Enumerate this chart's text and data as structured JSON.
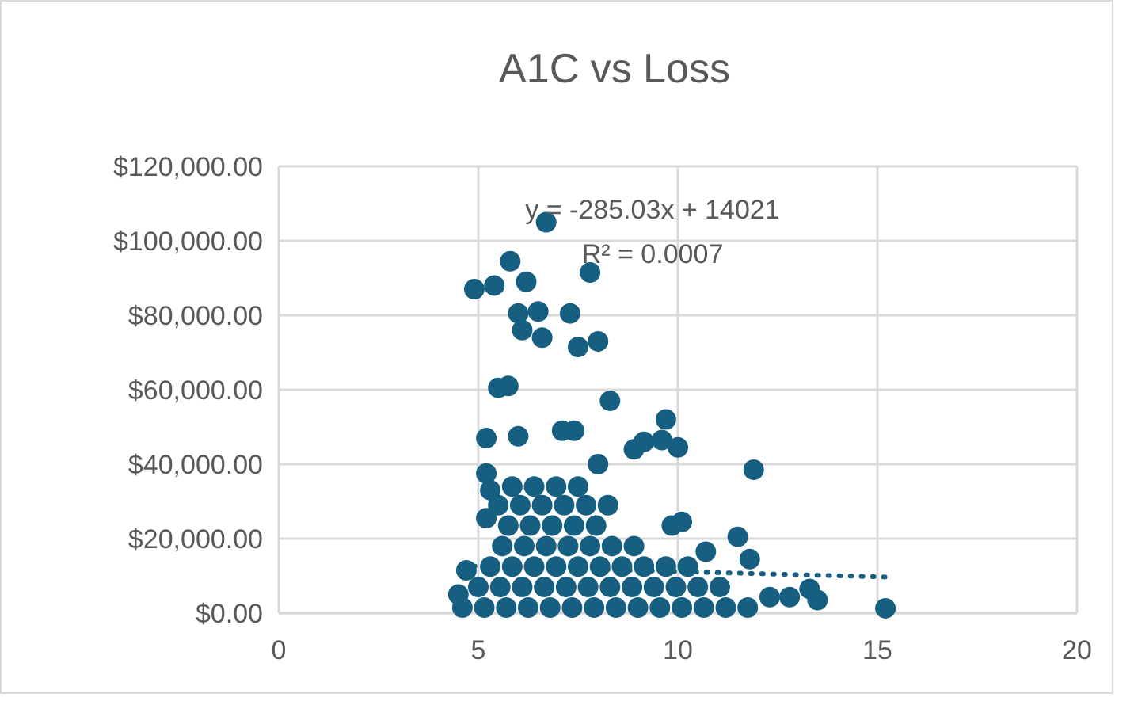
{
  "chart_data": {
    "type": "scatter",
    "title": "A1C vs Loss",
    "xlim": [
      0,
      20
    ],
    "xticks": [
      0,
      5,
      10,
      15,
      20
    ],
    "ylim": [
      0,
      120000
    ],
    "yticks": [
      {
        "value": 0,
        "label": "$0.00"
      },
      {
        "value": 20000,
        "label": "$20,000.00"
      },
      {
        "value": 40000,
        "label": "$40,000.00"
      },
      {
        "value": 60000,
        "label": "$60,000.00"
      },
      {
        "value": 80000,
        "label": "$80,000.00"
      },
      {
        "value": 100000,
        "label": "$100,000.00"
      },
      {
        "value": 120000,
        "label": "$120,000.00"
      }
    ],
    "grid": true,
    "marker": "circle",
    "annotations": [
      "y = -285.03x + 14021",
      "R² = 0.0007"
    ],
    "series": [
      {
        "color": "#175f81",
        "x": [
          6.7,
          4.9,
          5.4,
          5.8,
          6.2,
          6.0,
          6.5,
          6.6,
          7.3,
          7.8,
          6.1,
          7.5,
          8.0,
          5.5,
          5.75,
          8.3,
          5.2,
          6.0,
          7.1,
          7.4,
          9.7,
          9.15,
          9.6,
          10.0,
          11.9,
          10.1,
          9.85,
          11.5,
          10.7,
          11.8,
          12.3,
          12.8,
          13.3,
          13.5,
          15.2,
          5.2,
          8.0,
          8.9,
          5.3,
          5.2,
          4.7,
          4.5
        ],
        "values": [
          105000,
          87000,
          88000,
          94500,
          89000,
          80500,
          81000,
          74000,
          80500,
          91500,
          76000,
          71500,
          73000,
          60500,
          61000,
          57000,
          47000,
          47500,
          49000,
          49000,
          52000,
          46000,
          46500,
          44500,
          38500,
          24500,
          23500,
          20500,
          16500,
          14500,
          4300,
          4300,
          6500,
          3500,
          1300,
          37500,
          40000,
          44000,
          33000,
          25500,
          11500,
          5000
        ]
      },
      {
        "color": "#175f81",
        "x": [
          4.6,
          5.15,
          5.7,
          6.25,
          6.8,
          7.35,
          7.9,
          8.45,
          9.0,
          9.55,
          10.1,
          10.65,
          11.2,
          11.75
        ],
        "values": [
          1500,
          1500,
          1500,
          1500,
          1500,
          1500,
          1500,
          1500,
          1500,
          1500,
          1500,
          1500,
          1500,
          1500
        ]
      },
      {
        "color": "#175f81",
        "x": [
          5.0,
          5.55,
          6.1,
          6.65,
          7.2,
          7.75,
          8.3,
          8.85,
          9.4,
          9.95,
          10.5,
          11.05
        ],
        "values": [
          7000,
          7000,
          7000,
          7000,
          7000,
          7000,
          7000,
          7000,
          7000,
          7000,
          7000,
          7000
        ]
      },
      {
        "color": "#175f81",
        "x": [
          5.3,
          5.85,
          6.4,
          6.95,
          7.5,
          8.05,
          8.6,
          9.15,
          9.7,
          10.25
        ],
        "values": [
          12500,
          12500,
          12500,
          12500,
          12500,
          12500,
          12500,
          12500,
          12500,
          12500
        ]
      },
      {
        "color": "#175f81",
        "x": [
          5.6,
          6.15,
          6.7,
          7.25,
          7.8,
          8.35,
          8.9
        ],
        "values": [
          18000,
          18000,
          18000,
          18000,
          18000,
          18000,
          18000
        ]
      },
      {
        "color": "#175f81",
        "x": [
          5.75,
          6.3,
          6.85,
          7.4,
          7.95
        ],
        "values": [
          23500,
          23500,
          23500,
          23500,
          23500
        ]
      },
      {
        "color": "#175f81",
        "x": [
          5.5,
          6.05,
          6.6,
          7.15,
          7.7,
          8.25
        ],
        "values": [
          29000,
          29000,
          29000,
          29000,
          29000,
          29000
        ]
      },
      {
        "color": "#175f81",
        "x": [
          5.85,
          6.4,
          6.95,
          7.5
        ],
        "values": [
          34000,
          34000,
          34000,
          34000
        ]
      },
      {
        "type": "line",
        "color": "#175f81",
        "line_style": "dotted",
        "marker": "none",
        "x": [
          4.6,
          15.2
        ],
        "values": [
          12700,
          9700
        ]
      }
    ]
  }
}
